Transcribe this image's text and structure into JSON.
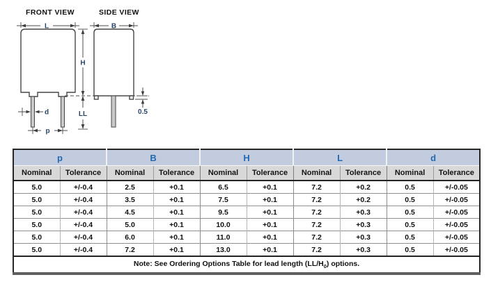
{
  "diagram": {
    "front_view_title": "FRONT VIEW",
    "side_view_title": "SIDE VIEW",
    "dim_labels": {
      "L": "L",
      "B": "B",
      "H": "H",
      "LL": "LL",
      "d": "d",
      "p": "p",
      "foot_height": "0.5"
    }
  },
  "colors": {
    "group_header_bg": "#c3ccdf",
    "group_header_text": "#2268b2",
    "subheader_bg": "#d8d8d8",
    "table_bottom_bar": "#5f5f5f",
    "row_line": "#8f8f8f"
  },
  "table": {
    "groups": [
      "p",
      "B",
      "H",
      "L",
      "d"
    ],
    "subheaders": [
      "Nominal",
      "Tolerance",
      "Nominal",
      "Tolerance",
      "Nominal",
      "Tolerance",
      "Nominal",
      "Tolerance",
      "Nominal",
      "Tolerance"
    ],
    "rows": [
      [
        "5.0",
        "+/-0.4",
        "2.5",
        "+0.1",
        "6.5",
        "+0.1",
        "7.2",
        "+0.2",
        "0.5",
        "+/-0.05"
      ],
      [
        "5.0",
        "+/-0.4",
        "3.5",
        "+0.1",
        "7.5",
        "+0.1",
        "7.2",
        "+0.2",
        "0.5",
        "+/-0.05"
      ],
      [
        "5.0",
        "+/-0.4",
        "4.5",
        "+0.1",
        "9.5",
        "+0.1",
        "7.2",
        "+0.3",
        "0.5",
        "+/-0.05"
      ],
      [
        "5.0",
        "+/-0.4",
        "5.0",
        "+0.1",
        "10.0",
        "+0.1",
        "7.2",
        "+0.3",
        "0.5",
        "+/-0.05"
      ],
      [
        "5.0",
        "+/-0.4",
        "6.0",
        "+0.1",
        "11.0",
        "+0.1",
        "7.2",
        "+0.3",
        "0.5",
        "+/-0.05"
      ],
      [
        "5.0",
        "+/-0.4",
        "7.2",
        "+0.1",
        "13.0",
        "+0.1",
        "7.2",
        "+0.3",
        "0.5",
        "+/-0.05"
      ]
    ],
    "note_pre": "Note: See Ordering Options Table for lead length (LL/H",
    "note_sub": "0",
    "note_post": ") options."
  }
}
